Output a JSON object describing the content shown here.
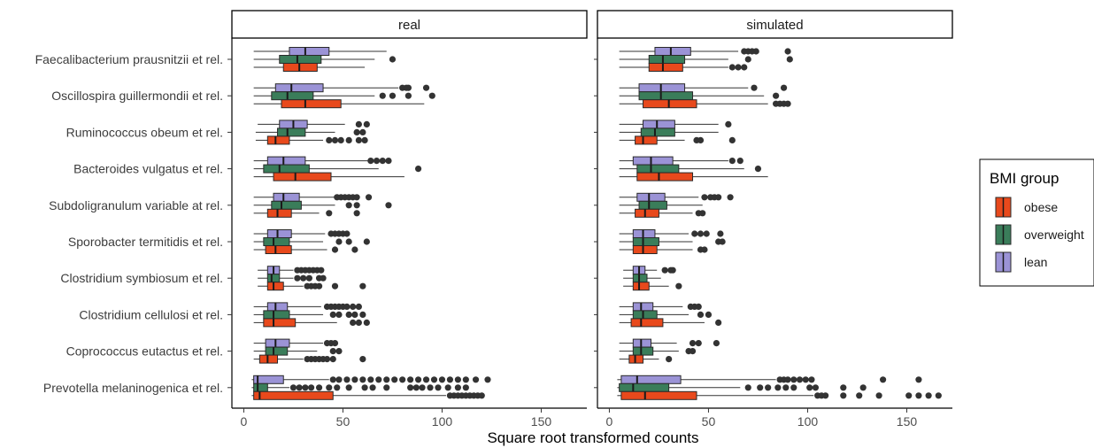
{
  "chart_data": {
    "type": "boxplot",
    "xlabel": "Square root transformed counts",
    "xlim": [
      -6,
      173
    ],
    "xticks": [
      0,
      50,
      100,
      150
    ],
    "facets": [
      "real",
      "simulated"
    ],
    "categories": [
      "Faecalibacterium prausnitzii et rel.",
      "Oscillospira guillermondii et rel.",
      "Ruminococcus obeum et rel.",
      "Bacteroides vulgatus et rel.",
      "Subdoligranulum variable at rel.",
      "Sporobacter termitidis et rel.",
      "Clostridium symbiosum et rel.",
      "Clostridium cellulosi et rel.",
      "Coprococcus eutactus et rel.",
      "Prevotella melaninogenica et rel."
    ],
    "legend": {
      "title": "BMI group",
      "position": "right",
      "entries": [
        {
          "label": "obese",
          "color": "#E8491C"
        },
        {
          "label": "overweight",
          "color": "#3A7D5A"
        },
        {
          "label": "lean",
          "color": "#9B93D6"
        }
      ]
    },
    "groups": [
      "lean",
      "overweight",
      "obese"
    ],
    "colors": {
      "lean": "#9B93D6",
      "overweight": "#3A7D5A",
      "obese": "#E8491C",
      "outlier": "#333333"
    },
    "panels": [
      {
        "facet": "real",
        "boxes": [
          [
            {
              "min": 5,
              "q1": 23,
              "median": 31,
              "q3": 43,
              "max": 72,
              "outliers": []
            },
            {
              "min": 5,
              "q1": 18,
              "median": 27,
              "q3": 39,
              "max": 66,
              "outliers": [
                75
              ]
            },
            {
              "min": 5,
              "q1": 20,
              "median": 28,
              "q3": 37,
              "max": 61,
              "outliers": []
            }
          ],
          [
            {
              "min": 5,
              "q1": 16,
              "median": 24,
              "q3": 40,
              "max": 78,
              "outliers": [
                80,
                82,
                83,
                92
              ]
            },
            {
              "min": 5,
              "q1": 14,
              "median": 22,
              "q3": 35,
              "max": 66,
              "outliers": [
                70,
                75,
                83,
                95
              ]
            },
            {
              "min": 5,
              "q1": 19,
              "median": 31,
              "q3": 49,
              "max": 91,
              "outliers": []
            }
          ],
          [
            {
              "min": 7,
              "q1": 18,
              "median": 25,
              "q3": 32,
              "max": 51,
              "outliers": [
                58,
                62
              ]
            },
            {
              "min": 6,
              "q1": 17,
              "median": 22,
              "q3": 31,
              "max": 46,
              "outliers": [
                57,
                60
              ]
            },
            {
              "min": 6,
              "q1": 12,
              "median": 16,
              "q3": 23,
              "max": 40,
              "outliers": [
                43,
                46,
                49,
                53,
                58,
                61
              ]
            }
          ],
          [
            {
              "min": 5,
              "q1": 12,
              "median": 20,
              "q3": 31,
              "max": 63,
              "outliers": [
                64,
                67,
                70,
                73
              ]
            },
            {
              "min": 5,
              "q1": 10,
              "median": 18,
              "q3": 33,
              "max": 68,
              "outliers": [
                88
              ]
            },
            {
              "min": 5,
              "q1": 15,
              "median": 26,
              "q3": 44,
              "max": 81,
              "outliers": []
            }
          ],
          [
            {
              "min": 5,
              "q1": 15,
              "median": 20,
              "q3": 28,
              "max": 46,
              "outliers": [
                47,
                49,
                51,
                53,
                55,
                57,
                63
              ]
            },
            {
              "min": 5,
              "q1": 14,
              "median": 19,
              "q3": 29,
              "max": 46,
              "outliers": [
                53,
                57,
                73
              ]
            },
            {
              "min": 5,
              "q1": 12,
              "median": 17,
              "q3": 24,
              "max": 38,
              "outliers": [
                43,
                57
              ]
            }
          ],
          [
            {
              "min": 5,
              "q1": 12,
              "median": 17,
              "q3": 24,
              "max": 41,
              "outliers": [
                44,
                46,
                48,
                50,
                52
              ]
            },
            {
              "min": 5,
              "q1": 10,
              "median": 15,
              "q3": 23,
              "max": 40,
              "outliers": [
                48,
                53,
                62
              ]
            },
            {
              "min": 5,
              "q1": 11,
              "median": 16,
              "q3": 24,
              "max": 42,
              "outliers": [
                46,
                56
              ]
            }
          ],
          [
            {
              "min": 7,
              "q1": 12,
              "median": 15,
              "q3": 18,
              "max": 25,
              "outliers": [
                27,
                29,
                31,
                33,
                35,
                37,
                39
              ]
            },
            {
              "min": 7,
              "q1": 12,
              "median": 14,
              "q3": 18,
              "max": 25,
              "outliers": [
                27,
                30,
                33,
                38,
                40
              ]
            },
            {
              "min": 7,
              "q1": 12,
              "median": 15,
              "q3": 20,
              "max": 30,
              "outliers": [
                32,
                34,
                36,
                38,
                46,
                60
              ]
            }
          ],
          [
            {
              "min": 5,
              "q1": 12,
              "median": 16,
              "q3": 22,
              "max": 39,
              "outliers": [
                42,
                44,
                46,
                48,
                50,
                52,
                55,
                58
              ]
            },
            {
              "min": 5,
              "q1": 10,
              "median": 15,
              "q3": 23,
              "max": 40,
              "outliers": [
                45,
                48,
                53,
                56,
                60
              ]
            },
            {
              "min": 5,
              "q1": 10,
              "median": 15,
              "q3": 26,
              "max": 47,
              "outliers": [
                55,
                58,
                62
              ]
            }
          ],
          [
            {
              "min": 5,
              "q1": 11,
              "median": 16,
              "q3": 23,
              "max": 40,
              "outliers": [
                42,
                44,
                46
              ]
            },
            {
              "min": 5,
              "q1": 11,
              "median": 15,
              "q3": 22,
              "max": 37,
              "outliers": [
                45,
                48
              ]
            },
            {
              "min": 5,
              "q1": 8,
              "median": 12,
              "q3": 17,
              "max": 30,
              "outliers": [
                32,
                34,
                36,
                38,
                40,
                42,
                45,
                60
              ]
            }
          ],
          [
            {
              "min": 4,
              "q1": 5,
              "median": 7,
              "q3": 20,
              "max": 43,
              "outliers": [
                45,
                48,
                52,
                56,
                60,
                64,
                68,
                72,
                76,
                80,
                84,
                88,
                92,
                96,
                100,
                104,
                108,
                112,
                117,
                123
              ]
            },
            {
              "min": 4,
              "q1": 5,
              "median": 7,
              "q3": 12,
              "max": 23,
              "outliers": [
                25,
                28,
                31,
                34,
                38,
                43,
                47,
                53,
                61,
                65,
                72,
                84,
                87,
                90,
                94,
                98,
                103,
                108,
                112
              ]
            },
            {
              "min": 4,
              "q1": 5,
              "median": 8,
              "q3": 45,
              "max": 102,
              "outliers": [
                104,
                106,
                108,
                110,
                112,
                114,
                116,
                118,
                120
              ]
            }
          ]
        ]
      },
      {
        "facet": "simulated",
        "boxes": [
          [
            {
              "min": 5,
              "q1": 23,
              "median": 31,
              "q3": 41,
              "max": 65,
              "outliers": [
                68,
                70,
                72,
                74,
                90
              ]
            },
            {
              "min": 5,
              "q1": 20,
              "median": 27,
              "q3": 38,
              "max": 60,
              "outliers": [
                70,
                91
              ]
            },
            {
              "min": 5,
              "q1": 20,
              "median": 27,
              "q3": 37,
              "max": 60,
              "outliers": [
                62,
                65,
                68
              ]
            }
          ],
          [
            {
              "min": 5,
              "q1": 15,
              "median": 26,
              "q3": 38,
              "max": 70,
              "outliers": [
                73,
                88
              ]
            },
            {
              "min": 5,
              "q1": 15,
              "median": 26,
              "q3": 42,
              "max": 78,
              "outliers": [
                84
              ]
            },
            {
              "min": 5,
              "q1": 17,
              "median": 30,
              "q3": 44,
              "max": 80,
              "outliers": [
                84,
                86,
                88,
                90
              ]
            }
          ],
          [
            {
              "min": 5,
              "q1": 17,
              "median": 24,
              "q3": 33,
              "max": 55,
              "outliers": [
                60
              ]
            },
            {
              "min": 5,
              "q1": 16,
              "median": 23,
              "q3": 33,
              "max": 55,
              "outliers": []
            },
            {
              "min": 5,
              "q1": 13,
              "median": 17,
              "q3": 24,
              "max": 38,
              "outliers": [
                44,
                46,
                62
              ]
            }
          ],
          [
            {
              "min": 5,
              "q1": 12,
              "median": 21,
              "q3": 32,
              "max": 60,
              "outliers": [
                62,
                66
              ]
            },
            {
              "min": 5,
              "q1": 14,
              "median": 21,
              "q3": 35,
              "max": 68,
              "outliers": [
                75
              ]
            },
            {
              "min": 5,
              "q1": 14,
              "median": 25,
              "q3": 42,
              "max": 80,
              "outliers": []
            }
          ],
          [
            {
              "min": 5,
              "q1": 14,
              "median": 20,
              "q3": 28,
              "max": 45,
              "outliers": [
                48,
                51,
                53,
                55,
                61
              ]
            },
            {
              "min": 5,
              "q1": 15,
              "median": 20,
              "q3": 29,
              "max": 47,
              "outliers": []
            },
            {
              "min": 5,
              "q1": 13,
              "median": 18,
              "q3": 25,
              "max": 42,
              "outliers": [
                45,
                47
              ]
            }
          ],
          [
            {
              "min": 5,
              "q1": 12,
              "median": 17,
              "q3": 23,
              "max": 40,
              "outliers": [
                43,
                46,
                49,
                56
              ]
            },
            {
              "min": 5,
              "q1": 12,
              "median": 17,
              "q3": 25,
              "max": 42,
              "outliers": [
                55,
                57
              ]
            },
            {
              "min": 5,
              "q1": 12,
              "median": 17,
              "q3": 24,
              "max": 42,
              "outliers": [
                46,
                48
              ]
            }
          ],
          [
            {
              "min": 7,
              "q1": 12,
              "median": 15,
              "q3": 18,
              "max": 24,
              "outliers": [
                28,
                31,
                32
              ]
            },
            {
              "min": 7,
              "q1": 12,
              "median": 15,
              "q3": 19,
              "max": 26,
              "outliers": []
            },
            {
              "min": 7,
              "q1": 12,
              "median": 15,
              "q3": 20,
              "max": 30,
              "outliers": [
                35
              ]
            }
          ],
          [
            {
              "min": 5,
              "q1": 12,
              "median": 16,
              "q3": 22,
              "max": 37,
              "outliers": [
                41,
                43,
                45
              ]
            },
            {
              "min": 5,
              "q1": 12,
              "median": 17,
              "q3": 24,
              "max": 40,
              "outliers": [
                46,
                50
              ]
            },
            {
              "min": 5,
              "q1": 11,
              "median": 16,
              "q3": 27,
              "max": 48,
              "outliers": [
                55
              ]
            }
          ],
          [
            {
              "min": 5,
              "q1": 12,
              "median": 16,
              "q3": 21,
              "max": 34,
              "outliers": [
                42,
                45,
                54
              ]
            },
            {
              "min": 5,
              "q1": 12,
              "median": 16,
              "q3": 22,
              "max": 35,
              "outliers": [
                40,
                42
              ]
            },
            {
              "min": 5,
              "q1": 10,
              "median": 13,
              "q3": 17,
              "max": 25,
              "outliers": [
                30
              ]
            }
          ],
          [
            {
              "min": 4,
              "q1": 6,
              "median": 14,
              "q3": 36,
              "max": 84,
              "outliers": [
                86,
                88,
                90,
                93,
                96,
                99,
                102,
                138,
                156
              ]
            },
            {
              "min": 4,
              "q1": 5,
              "median": 12,
              "q3": 30,
              "max": 66,
              "outliers": [
                70,
                76,
                80,
                85,
                89,
                93,
                101,
                104,
                118,
                128
              ]
            },
            {
              "min": 4,
              "q1": 6,
              "median": 18,
              "q3": 44,
              "max": 103,
              "outliers": [
                105,
                107,
                109,
                118,
                126,
                136,
                151,
                156,
                161,
                166
              ]
            }
          ]
        ]
      }
    ]
  }
}
